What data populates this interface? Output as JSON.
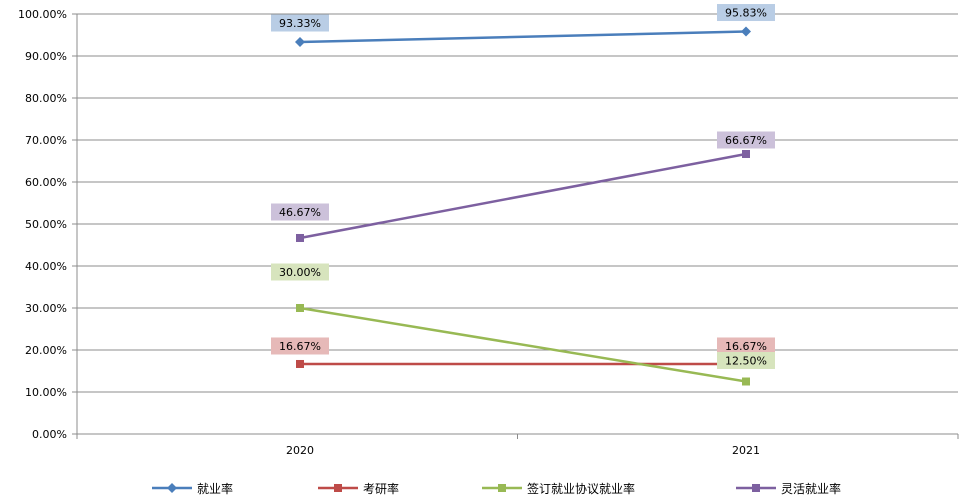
{
  "chart_data": {
    "type": "line",
    "categories": [
      "2020",
      "2021"
    ],
    "ylim": [
      0,
      100
    ],
    "ytick_values": [
      0,
      10,
      20,
      30,
      40,
      50,
      60,
      70,
      80,
      90,
      100
    ],
    "ytick_labels": [
      "0.00%",
      "10.00%",
      "20.00%",
      "30.00%",
      "40.00%",
      "50.00%",
      "60.00%",
      "70.00%",
      "80.00%",
      "90.00%",
      "100.00%"
    ],
    "grid": true,
    "legend_position": "bottom",
    "series": [
      {
        "name": "就业率",
        "values": [
          93.33,
          95.83
        ],
        "labels": [
          "93.33%",
          "95.83%"
        ],
        "color": "#4a7ebb",
        "label_bg": "#b9cde5",
        "marker": "diamond"
      },
      {
        "name": "考研率",
        "values": [
          16.67,
          16.67
        ],
        "labels": [
          "16.67%",
          "16.67%"
        ],
        "color": "#be4b48",
        "label_bg": "#e6b9b8",
        "marker": "square"
      },
      {
        "name": "签订就业协议就业率",
        "values": [
          30.0,
          12.5
        ],
        "labels": [
          "30.00%",
          "12.50%"
        ],
        "color": "#98b954",
        "label_bg": "#d7e4bd",
        "marker": "square"
      },
      {
        "name": "灵活就业率",
        "values": [
          46.67,
          66.67
        ],
        "labels": [
          "46.67%",
          "66.67%"
        ],
        "color": "#7d60a0",
        "label_bg": "#ccc1da",
        "marker": "square"
      }
    ]
  }
}
